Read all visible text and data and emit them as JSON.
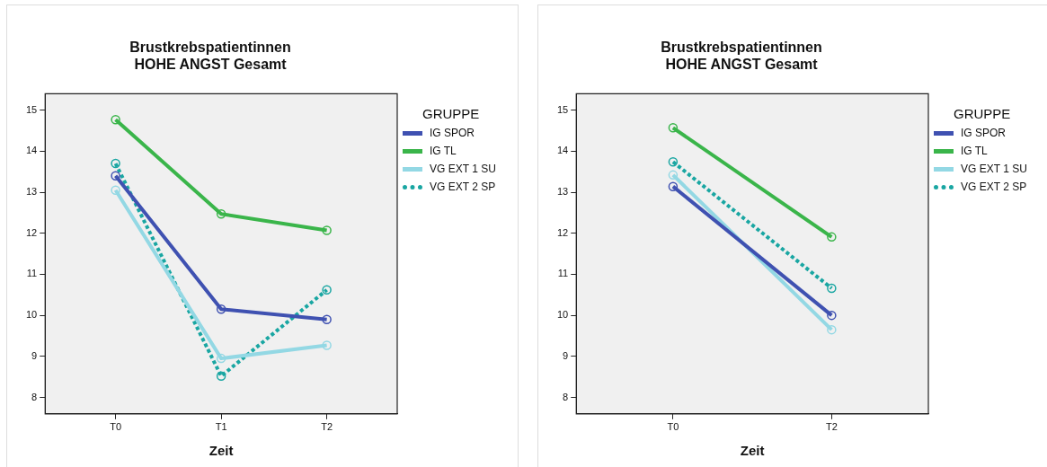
{
  "chart_data": [
    {
      "type": "line",
      "title": "Brustkrebspatientinnen\nHOHE ANGST Gesamt",
      "xlabel": "Zeit",
      "categories": [
        "T0",
        "T1",
        "T2"
      ],
      "ylim": [
        7.6,
        15.4
      ],
      "yticks": [
        8,
        9,
        10,
        11,
        12,
        13,
        14,
        15
      ],
      "grid": false,
      "legend": "right",
      "legend_title": "GRUPPE",
      "marker": "circle",
      "line_style": "solid",
      "series": [
        {
          "name": "IG SPOR",
          "color": "#3f51b1",
          "values": [
            13.4,
            10.15,
            9.9
          ]
        },
        {
          "name": "IG TL",
          "color": "#3ab54a",
          "values": [
            14.77,
            12.47,
            12.07
          ]
        },
        {
          "name": "VG EXT 1 SU",
          "color": "#93d8e4",
          "values": [
            13.05,
            8.95,
            9.27
          ]
        },
        {
          "name": "VG EXT 2 SP",
          "color": "#19a6a2",
          "line_style": "dotted",
          "values": [
            13.7,
            8.52,
            10.62
          ]
        }
      ]
    },
    {
      "type": "line",
      "title": "Brustkrebspatientinnen\nHOHE ANGST Gesamt",
      "xlabel": "Zeit",
      "categories": [
        "T0",
        "T2"
      ],
      "ylim": [
        7.6,
        15.4
      ],
      "yticks": [
        8,
        9,
        10,
        11,
        12,
        13,
        14,
        15
      ],
      "grid": false,
      "legend": "right",
      "legend_title": "GRUPPE",
      "marker": "circle",
      "line_style": "solid",
      "series": [
        {
          "name": "IG SPOR",
          "color": "#3f51b1",
          "values": [
            13.14,
            10.0
          ]
        },
        {
          "name": "IG TL",
          "color": "#3ab54a",
          "values": [
            14.57,
            11.91
          ]
        },
        {
          "name": "VG EXT 1 SU",
          "color": "#93d8e4",
          "values": [
            13.42,
            9.65
          ]
        },
        {
          "name": "VG EXT 2 SP",
          "color": "#19a6a2",
          "line_style": "dotted",
          "values": [
            13.74,
            10.66
          ]
        }
      ]
    }
  ]
}
